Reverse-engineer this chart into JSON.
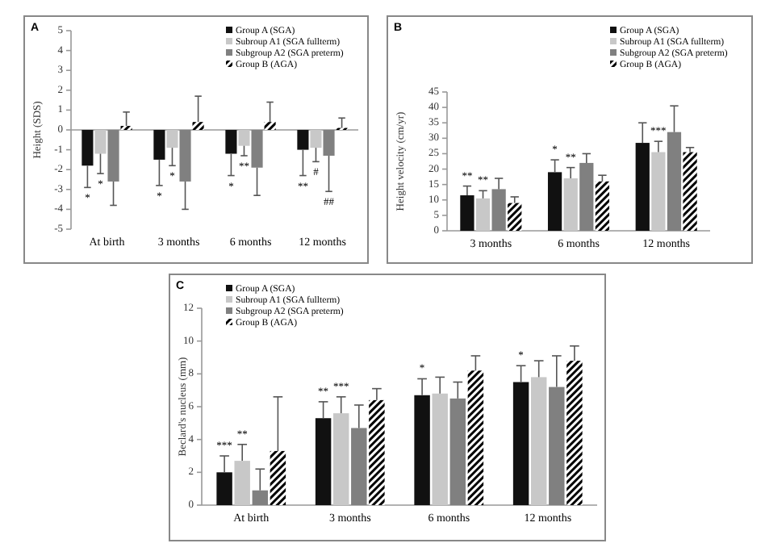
{
  "chart_data": [
    {
      "type": "bar",
      "title": "A",
      "ylabel": "Height (SDS)",
      "categories": [
        "At birth",
        "3 months",
        "6 months",
        "12 months"
      ],
      "ylim": [
        -5,
        5
      ],
      "yticks": [
        -5,
        -4,
        -3,
        -2,
        -1,
        0,
        1,
        2,
        3,
        4,
        5
      ],
      "legend": "top right",
      "series": [
        {
          "name": "Group A (SGA)",
          "color": "#111111",
          "values": [
            -1.8,
            -1.5,
            -1.2,
            -1.0
          ],
          "errors": [
            [
              -2.9,
              -1.8
            ],
            [
              -2.8,
              -1.5
            ],
            [
              -2.3,
              -1.2
            ],
            [
              -2.3,
              -1.0
            ]
          ]
        },
        {
          "name": "Subroup A1 (SGA fullterm)",
          "color": "#c8c8c8",
          "values": [
            -1.2,
            -0.9,
            -0.8,
            -0.9
          ],
          "errors": [
            [
              -2.2,
              -1.2
            ],
            [
              -1.8,
              -0.9
            ],
            [
              -1.3,
              -0.8
            ],
            [
              -1.6,
              -0.9
            ]
          ]
        },
        {
          "name": "Subgroup A2 (SGA preterm)",
          "color": "#808080",
          "values": [
            -2.6,
            -2.6,
            -1.9,
            -1.3
          ],
          "errors": [
            [
              -3.8,
              -2.6
            ],
            [
              -4.0,
              -2.6
            ],
            [
              -3.3,
              -1.9
            ],
            [
              -3.1,
              -1.3
            ]
          ]
        },
        {
          "name": "Group B (AGA)",
          "color": "#000000",
          "values": [
            0.2,
            0.4,
            0.4,
            0.1
          ],
          "errors": [
            [
              0.2,
              0.9
            ],
            [
              0.4,
              1.7
            ],
            [
              0.4,
              1.4
            ],
            [
              0.1,
              0.6
            ]
          ]
        }
      ],
      "annotations": [
        {
          "text": "*",
          "x": "At birth",
          "y": -2.9
        },
        {
          "text": "*",
          "x": "At birth",
          "y": -2.2
        },
        {
          "text": "*",
          "x": "3 months",
          "y": -2.8
        },
        {
          "text": "*",
          "x": "3 months",
          "y": -1.8
        },
        {
          "text": "*",
          "x": "6 months",
          "y": -2.3
        },
        {
          "text": "**",
          "x": "6 months",
          "y": -1.3
        },
        {
          "text": "**",
          "x": "12 months",
          "y": -2.3
        },
        {
          "text": "#",
          "x": "12 months",
          "y": -1.6
        },
        {
          "text": "##",
          "x": "12 months",
          "y": -3.1
        }
      ]
    },
    {
      "type": "bar",
      "title": "B",
      "ylabel": "Height velocity (cm/yr)",
      "categories": [
        "3 months",
        "6 months",
        "12 months"
      ],
      "ylim": [
        0,
        45
      ],
      "yticks": [
        0,
        5,
        10,
        15,
        20,
        25,
        30,
        35,
        40,
        45
      ],
      "legend": "top right",
      "series": [
        {
          "name": "Group A (SGA)",
          "color": "#111111",
          "values": [
            11.5,
            19,
            28.5
          ],
          "errors": [
            [
              11.5,
              14.5
            ],
            [
              19,
              23
            ],
            [
              28.5,
              35
            ]
          ]
        },
        {
          "name": "Subroup A1 (SGA fullterm)",
          "color": "#c8c8c8",
          "values": [
            10.5,
            17,
            25.5
          ],
          "errors": [
            [
              10.5,
              13
            ],
            [
              17,
              20.5
            ],
            [
              25.5,
              29
            ]
          ]
        },
        {
          "name": "Subgroup A2 (SGA preterm)",
          "color": "#808080",
          "values": [
            13.5,
            22,
            32
          ],
          "errors": [
            [
              13.5,
              17
            ],
            [
              22,
              25
            ],
            [
              32,
              40.5
            ]
          ]
        },
        {
          "name": "Group B (AGA)",
          "color": "#000000",
          "values": [
            9,
            16,
            25.5
          ],
          "errors": [
            [
              9,
              11
            ],
            [
              16,
              18
            ],
            [
              25.5,
              27
            ]
          ]
        }
      ],
      "annotations": [
        {
          "text": "**",
          "x": "3 months",
          "y": 14.5
        },
        {
          "text": "**",
          "x": "3 months",
          "y": 13
        },
        {
          "text": "*",
          "x": "6 months",
          "y": 23
        },
        {
          "text": "**",
          "x": "6 months",
          "y": 20.5
        },
        {
          "text": "***",
          "x": "12 months",
          "y": 29
        }
      ]
    },
    {
      "type": "bar",
      "title": "C",
      "ylabel": "Beclard's nucleus (mm)",
      "categories": [
        "At birth",
        "3 months",
        "6 months",
        "12 months"
      ],
      "ylim": [
        0,
        12
      ],
      "yticks": [
        0,
        2,
        4,
        6,
        8,
        10,
        12
      ],
      "legend": "top left",
      "series": [
        {
          "name": "Group A (SGA)",
          "color": "#111111",
          "values": [
            2.0,
            5.3,
            6.7,
            7.5
          ],
          "errors": [
            [
              2.0,
              3.0
            ],
            [
              5.3,
              6.3
            ],
            [
              6.7,
              7.7
            ],
            [
              7.5,
              8.5
            ]
          ]
        },
        {
          "name": "Subroup A1 (SGA fullterm)",
          "color": "#c8c8c8",
          "values": [
            2.7,
            5.6,
            6.8,
            7.8
          ],
          "errors": [
            [
              2.7,
              3.7
            ],
            [
              5.6,
              6.6
            ],
            [
              6.8,
              7.8
            ],
            [
              7.8,
              8.8
            ]
          ]
        },
        {
          "name": "Subgroup A2 (SGA preterm)",
          "color": "#808080",
          "values": [
            0.9,
            4.7,
            6.5,
            7.2
          ],
          "errors": [
            [
              0.9,
              2.2
            ],
            [
              4.7,
              6.1
            ],
            [
              6.5,
              7.5
            ],
            [
              7.2,
              9.1
            ]
          ]
        },
        {
          "name": "Group B (AGA)",
          "color": "#000000",
          "values": [
            3.3,
            6.4,
            8.2,
            8.8
          ],
          "errors": [
            [
              3.3,
              6.6
            ],
            [
              6.4,
              7.1
            ],
            [
              8.2,
              9.1
            ],
            [
              8.8,
              9.7
            ]
          ]
        }
      ],
      "annotations": [
        {
          "text": "***",
          "x": "At birth",
          "y": 3.0
        },
        {
          "text": "**",
          "x": "At birth",
          "y": 3.7
        },
        {
          "text": "**",
          "x": "3 months",
          "y": 6.3
        },
        {
          "text": "***",
          "x": "3 months",
          "y": 6.6
        },
        {
          "text": "*",
          "x": "6 months",
          "y": 7.7
        },
        {
          "text": "*",
          "x": "12 months",
          "y": 8.5
        }
      ]
    }
  ]
}
